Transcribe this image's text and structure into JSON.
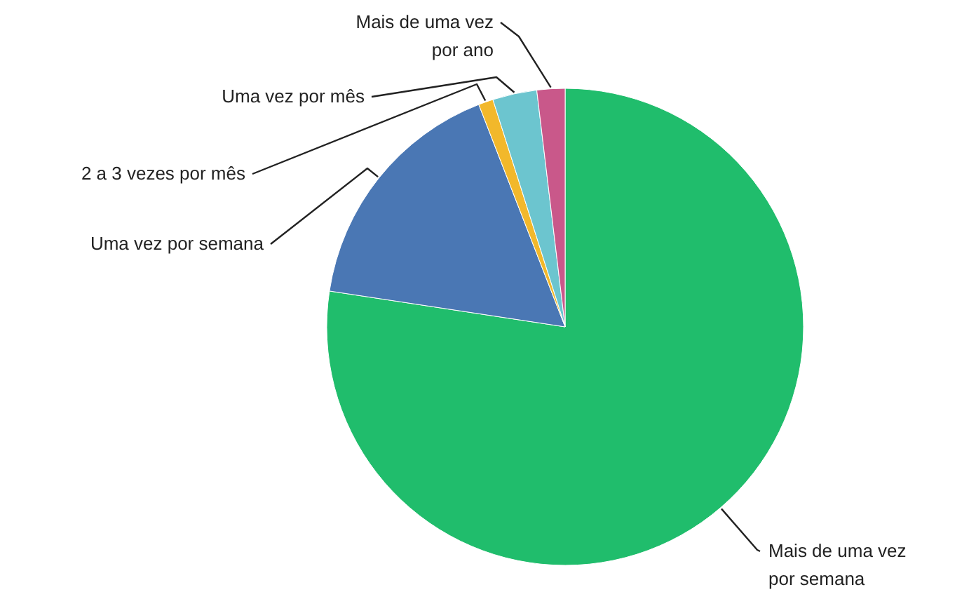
{
  "chart_data": {
    "type": "pie",
    "categories": [
      "Mais de uma vez por semana",
      "Uma vez por semana",
      "2 a 3 vezes por mês",
      "Uma vez por mês",
      "Mais de uma vez por ano"
    ],
    "values": [
      77.4,
      16.7,
      1,
      3,
      1.9
    ],
    "colors": [
      "#20bd6c",
      "#4a77b4",
      "#f2b82b",
      "#6cc5cf",
      "#c9588a"
    ]
  }
}
